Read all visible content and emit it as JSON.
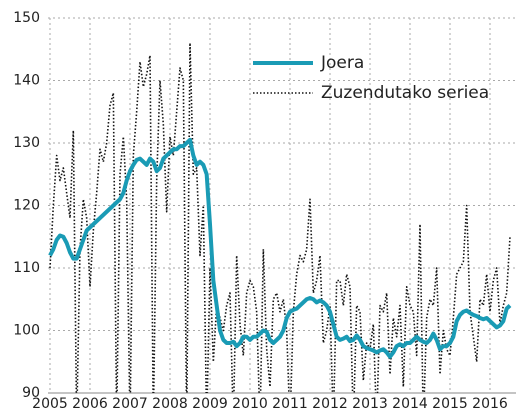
{
  "chart_data": {
    "type": "line",
    "categories": [
      "2005",
      null,
      null,
      null,
      null,
      null,
      null,
      null,
      null,
      null,
      null,
      null,
      "2006",
      null,
      null,
      null,
      null,
      null,
      null,
      null,
      null,
      null,
      null,
      null,
      "2007",
      null,
      null,
      null,
      null,
      null,
      null,
      null,
      null,
      null,
      null,
      null,
      "2008",
      null,
      null,
      null,
      null,
      null,
      null,
      null,
      null,
      null,
      null,
      null,
      "2009",
      null,
      null,
      null,
      null,
      null,
      null,
      null,
      null,
      null,
      null,
      null,
      "2010",
      null,
      null,
      null,
      null,
      null,
      null,
      null,
      null,
      null,
      null,
      null,
      "2011",
      null,
      null,
      null,
      null,
      null,
      null,
      null,
      null,
      null,
      null,
      null,
      "2012",
      null,
      null,
      null,
      null,
      null,
      null,
      null,
      null,
      null,
      null,
      null,
      "2013",
      null,
      null,
      null,
      null,
      null,
      null,
      null,
      null,
      null,
      null,
      null,
      "2014",
      null,
      null,
      null,
      null,
      null,
      null,
      null,
      null,
      null,
      null,
      null,
      "2015",
      null,
      null,
      null,
      null,
      null,
      null,
      null,
      null,
      null,
      null,
      null,
      "2016",
      null,
      null,
      null,
      null,
      null,
      null
    ],
    "series": [
      {
        "name": "Joera",
        "color": "#1a9bb5",
        "style": "solid",
        "values": [
          112,
          113,
          114.5,
          115.2,
          115,
          114,
          112.5,
          111.5,
          111.5,
          113,
          114.5,
          116,
          116.5,
          117,
          117.5,
          118,
          118.5,
          119,
          119.5,
          120,
          120.5,
          121,
          122,
          124,
          125.5,
          126.5,
          127.3,
          127.5,
          127,
          126.5,
          127.5,
          127,
          125.5,
          126,
          127.5,
          128,
          128.5,
          129,
          129,
          129.5,
          129.5,
          130,
          130.5,
          128,
          126.5,
          127,
          126.5,
          125,
          117,
          108,
          104,
          100,
          98.5,
          98,
          98,
          98.2,
          97.5,
          98,
          99,
          99,
          98.5,
          99,
          99,
          99.5,
          100,
          99.8,
          98.5,
          98,
          98.5,
          99,
          100,
          102,
          103,
          103.3,
          103.5,
          104,
          104.5,
          105,
          105.2,
          105,
          104.5,
          104.8,
          104.5,
          104,
          103,
          101,
          99,
          98.5,
          98.7,
          99,
          98.3,
          98.5,
          99.2,
          98.5,
          97.5,
          97.2,
          97,
          96.8,
          96.5,
          96.8,
          97,
          96.5,
          95.8,
          96.5,
          97.5,
          97.8,
          97.5,
          98,
          98,
          98.5,
          99,
          98.5,
          98.2,
          98,
          98.5,
          99.5,
          98.5,
          97,
          97.5,
          97.5,
          98,
          99,
          101.5,
          102.5,
          103,
          103.2,
          102.8,
          102.5,
          102.3,
          102,
          101.8,
          102,
          101.5,
          101,
          100.5,
          100.8,
          101.5,
          103.5,
          104
        ]
      },
      {
        "name": "Zuzendutako seriea",
        "color": "#111111",
        "style": "dotted",
        "values": [
          110,
          120,
          128,
          124,
          126,
          122,
          118,
          132,
          85,
          113,
          121,
          118,
          107,
          116,
          122,
          129,
          127,
          130,
          136,
          138,
          85,
          125,
          131,
          121,
          85,
          128,
          135,
          143,
          139,
          141,
          144,
          85,
          124,
          140,
          133,
          119,
          131,
          128,
          135,
          142,
          140,
          85,
          146,
          125,
          126,
          112,
          120,
          85,
          110,
          95,
          104,
          102,
          100,
          104,
          106,
          85,
          112,
          101,
          96,
          106,
          108,
          107,
          103,
          85,
          113,
          97,
          91,
          105,
          106,
          103,
          105,
          100,
          85,
          103,
          109,
          112,
          111,
          113,
          121,
          106,
          108,
          112,
          98,
          100,
          104,
          85,
          108,
          108,
          104,
          109,
          107,
          85,
          104,
          103,
          92,
          98,
          97,
          101,
          85,
          104,
          103,
          106,
          93,
          102,
          99,
          104,
          91,
          107,
          104,
          103,
          96,
          117,
          85,
          102,
          105,
          104,
          110,
          93,
          100,
          97,
          96,
          102,
          109,
          110,
          111,
          120,
          103,
          99,
          95,
          105,
          104,
          109,
          103,
          108,
          110,
          101,
          104,
          106,
          115
        ]
      }
    ],
    "ylim": [
      90,
      150
    ],
    "yticks": [
      90,
      100,
      110,
      120,
      130,
      140,
      150
    ],
    "grid": true,
    "legend": "upper right"
  }
}
